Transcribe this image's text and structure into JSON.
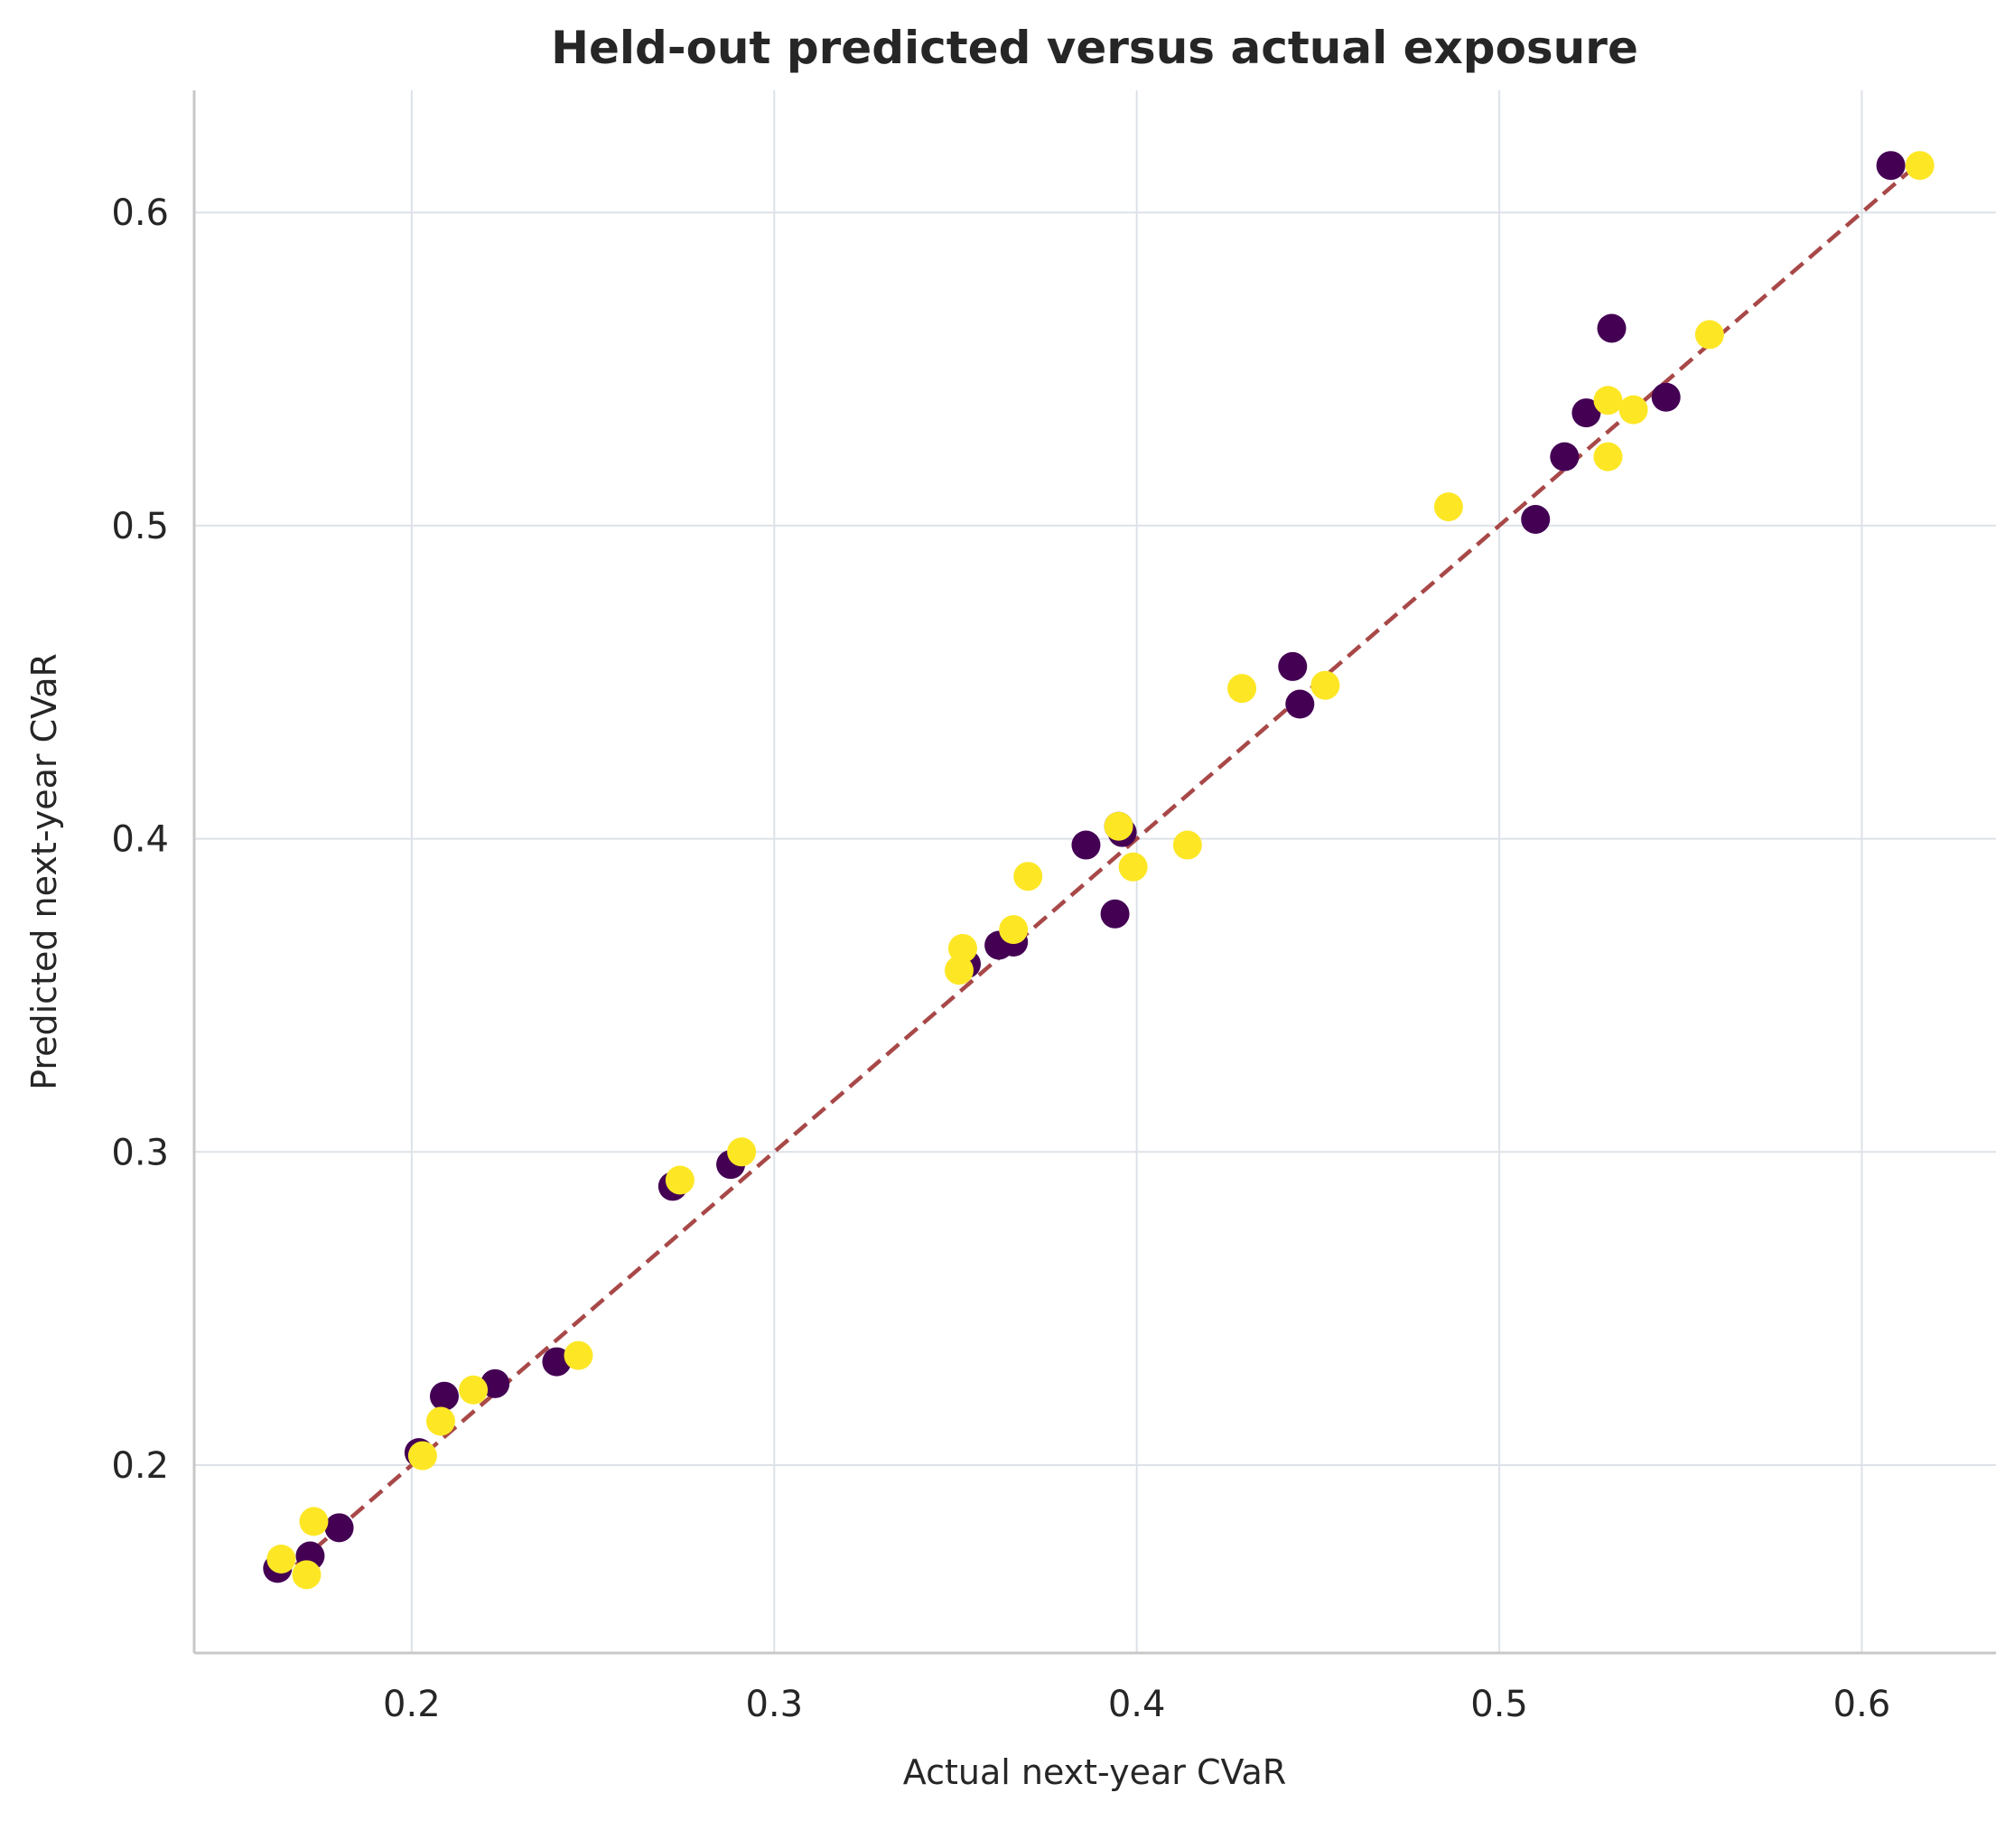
{
  "chart_data": {
    "type": "scatter",
    "title": "Held-out predicted versus actual exposure",
    "xlabel": "Actual next-year CVaR",
    "ylabel": "Predicted next-year CVaR",
    "xlim": [
      0.14,
      0.637
    ],
    "ylim": [
      0.14,
      0.639
    ],
    "xticks": [
      0.2,
      0.3,
      0.4,
      0.5,
      0.6
    ],
    "yticks": [
      0.2,
      0.3,
      0.4,
      0.5,
      0.6
    ],
    "xtick_labels": [
      "0.2",
      "0.3",
      "0.4",
      "0.5",
      "0.6"
    ],
    "ytick_labels": [
      "0.2",
      "0.3",
      "0.4",
      "0.5",
      "0.6"
    ],
    "grid": true,
    "legend": null,
    "reference_line": {
      "style": "dashed",
      "color": "#a84848",
      "x": [
        0.163,
        0.616
      ],
      "y": [
        0.163,
        0.616
      ]
    },
    "series": [
      {
        "color": "#440154",
        "x": [
          0.163,
          0.172,
          0.18,
          0.202,
          0.209,
          0.223,
          0.24,
          0.272,
          0.288,
          0.353,
          0.362,
          0.366,
          0.386,
          0.394,
          0.395,
          0.396,
          0.443,
          0.445,
          0.51,
          0.518,
          0.524,
          0.531,
          0.546,
          0.608
        ],
        "y": [
          0.167,
          0.171,
          0.18,
          0.204,
          0.222,
          0.226,
          0.233,
          0.289,
          0.296,
          0.36,
          0.366,
          0.367,
          0.398,
          0.376,
          0.404,
          0.402,
          0.455,
          0.443,
          0.502,
          0.522,
          0.536,
          0.563,
          0.541,
          0.615
        ]
      },
      {
        "color": "#fde725",
        "x": [
          0.164,
          0.171,
          0.173,
          0.203,
          0.208,
          0.217,
          0.246,
          0.274,
          0.291,
          0.351,
          0.352,
          0.366,
          0.37,
          0.395,
          0.399,
          0.414,
          0.429,
          0.452,
          0.486,
          0.53,
          0.53,
          0.537,
          0.558,
          0.616
        ],
        "y": [
          0.17,
          0.165,
          0.182,
          0.203,
          0.214,
          0.224,
          0.235,
          0.291,
          0.3,
          0.358,
          0.365,
          0.371,
          0.388,
          0.404,
          0.391,
          0.398,
          0.448,
          0.449,
          0.506,
          0.522,
          0.54,
          0.537,
          0.561,
          0.615
        ]
      }
    ]
  }
}
